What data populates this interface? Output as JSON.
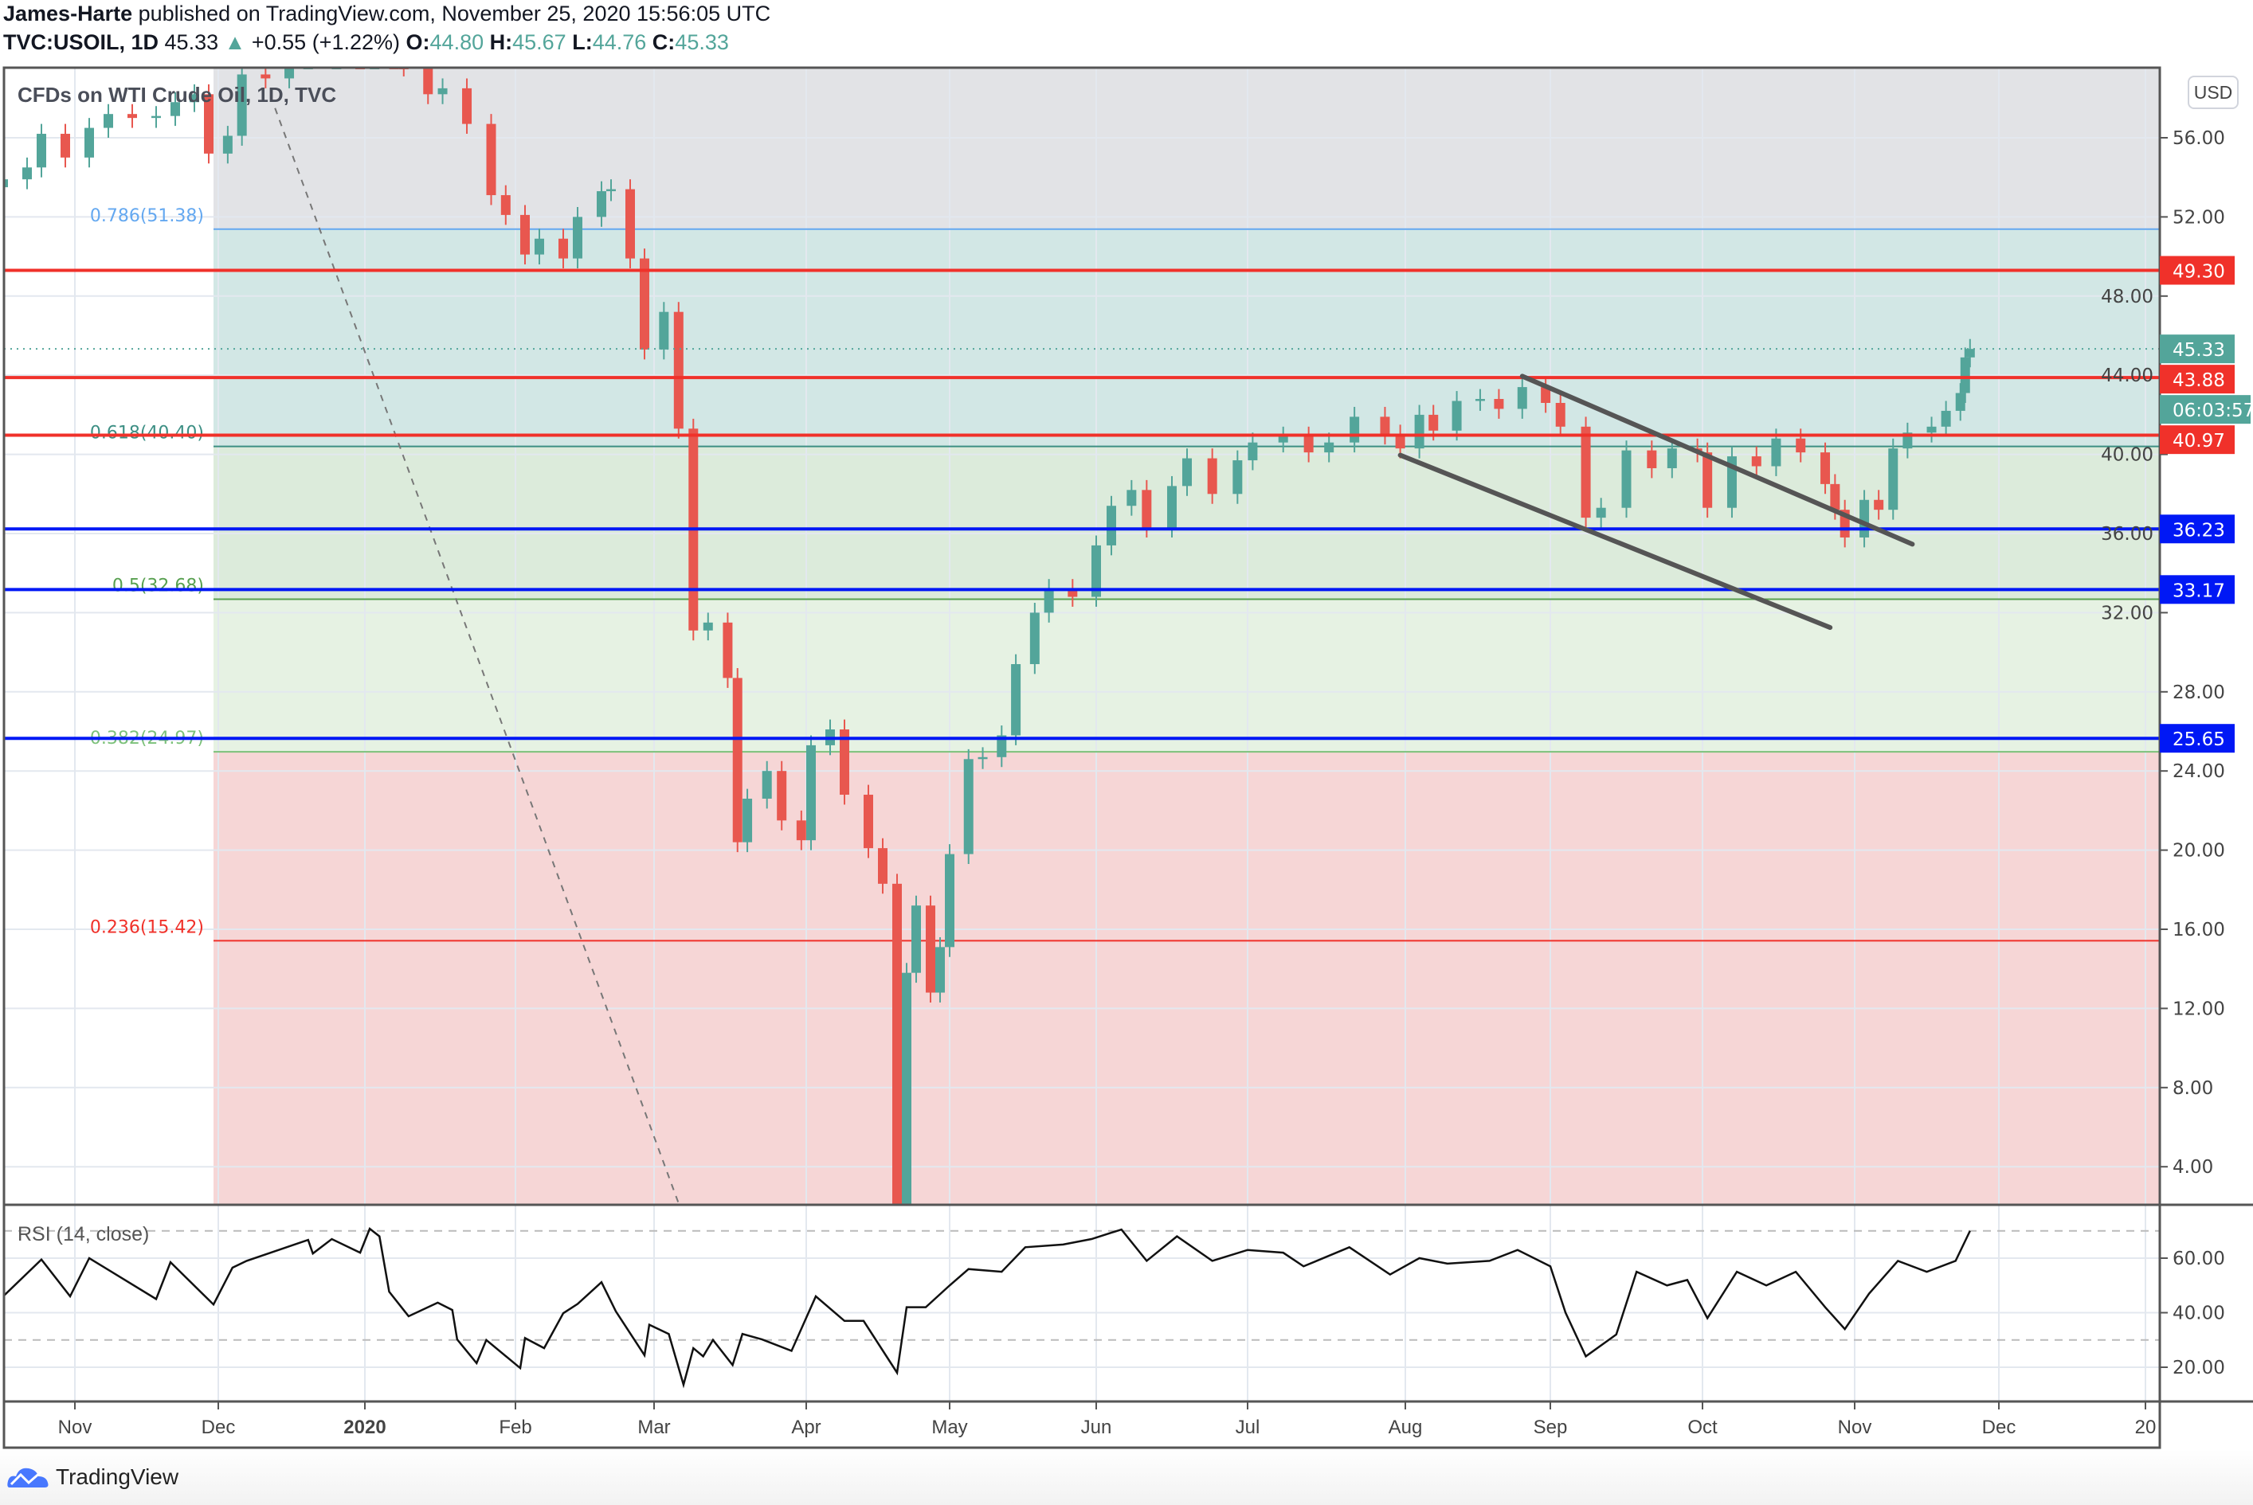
{
  "header": {
    "author": "James-Harte",
    "published_text": "published on TradingView.com, November 25, 2020 15:56:05 UTC",
    "symbol": "TVC:USOIL, 1D",
    "last": "45.33",
    "change": "+0.55 (+1.22%)",
    "o_label": "O:",
    "o": "44.80",
    "h_label": "H:",
    "h": "45.67",
    "l_label": "L:",
    "l": "44.76",
    "c_label": "C:",
    "c": "45.33",
    "direction_icon": "triangle-up-icon"
  },
  "watermark": "CFDs on WTI Crude Oil, 1D, TVC",
  "currency_button": "USD",
  "footer": {
    "brand": "TradingView",
    "logo_icon": "tradingview-cloud-icon"
  },
  "colors": {
    "up": "#53a59a",
    "down": "#e8574f",
    "red_level": "#f0312a",
    "blue_level": "#0018f5",
    "teal_tag": "#53a59a"
  },
  "chart_data": [
    {
      "type": "candlestick",
      "title": "CFDs on WTI Crude Oil, 1D, TVC",
      "ylabel": "USD",
      "y_ticks": [
        56,
        52,
        48,
        44,
        40,
        36,
        32,
        28,
        24,
        20,
        16,
        12,
        8,
        4
      ],
      "y_tick_labels": [
        "56.00",
        "52.00",
        "48.00",
        "44.00",
        "40.00",
        "36.00",
        "32.00",
        "28.00",
        "24.00",
        "20.00",
        "16.00",
        "12.00",
        "8.00",
        "4.00"
      ],
      "x_tick_labels": [
        {
          "date": "2019-11-01",
          "label": "Nov"
        },
        {
          "date": "2019-12-01",
          "label": "Dec"
        },
        {
          "date": "2020-01-01",
          "label": "2020"
        },
        {
          "date": "2020-02-01",
          "label": "Feb"
        },
        {
          "date": "2020-03-01",
          "label": "Mar"
        },
        {
          "date": "2020-04-01",
          "label": "Apr"
        },
        {
          "date": "2020-05-01",
          "label": "May"
        },
        {
          "date": "2020-06-01",
          "label": "Jun"
        },
        {
          "date": "2020-07-01",
          "label": "Jul"
        },
        {
          "date": "2020-08-01",
          "label": "Aug"
        },
        {
          "date": "2020-09-01",
          "label": "Sep"
        },
        {
          "date": "2020-10-01",
          "label": "Oct"
        },
        {
          "date": "2020-11-01",
          "label": "Nov"
        },
        {
          "date": "2020-12-01",
          "label": "Dec"
        },
        {
          "date": "2020-12-31",
          "label": "20"
        }
      ],
      "grid": true,
      "closes": [
        [
          "2019-10-17",
          53.9
        ],
        [
          "2019-10-22",
          54.5
        ],
        [
          "2019-10-25",
          56.2
        ],
        [
          "2019-10-30",
          55.0
        ],
        [
          "2019-11-04",
          56.5
        ],
        [
          "2019-11-08",
          57.2
        ],
        [
          "2019-11-13",
          57.0
        ],
        [
          "2019-11-18",
          57.1
        ],
        [
          "2019-11-22",
          57.8
        ],
        [
          "2019-11-26",
          58.2
        ],
        [
          "2019-11-29",
          55.2
        ],
        [
          "2019-12-03",
          56.1
        ],
        [
          "2019-12-06",
          59.2
        ],
        [
          "2019-12-11",
          59.0
        ],
        [
          "2019-12-16",
          60.2
        ],
        [
          "2019-12-20",
          60.4
        ],
        [
          "2019-12-26",
          61.7
        ],
        [
          "2019-12-31",
          61.1
        ],
        [
          "2020-01-03",
          63.0
        ],
        [
          "2020-01-07",
          62.7
        ],
        [
          "2020-01-09",
          59.6
        ],
        [
          "2020-01-14",
          58.2
        ],
        [
          "2020-01-17",
          58.5
        ],
        [
          "2020-01-22",
          56.7
        ],
        [
          "2020-01-27",
          53.1
        ],
        [
          "2020-01-30",
          52.1
        ],
        [
          "2020-02-03",
          50.1
        ],
        [
          "2020-02-06",
          50.9
        ],
        [
          "2020-02-11",
          49.9
        ],
        [
          "2020-02-14",
          52.0
        ],
        [
          "2020-02-19",
          53.3
        ],
        [
          "2020-02-21",
          53.4
        ],
        [
          "2020-02-25",
          49.9
        ],
        [
          "2020-02-28",
          45.3
        ],
        [
          "2020-03-03",
          47.2
        ],
        [
          "2020-03-06",
          41.3
        ],
        [
          "2020-03-09",
          31.1
        ],
        [
          "2020-03-12",
          31.5
        ],
        [
          "2020-03-16",
          28.7
        ],
        [
          "2020-03-18",
          20.4
        ],
        [
          "2020-03-20",
          22.6
        ],
        [
          "2020-03-24",
          24.0
        ],
        [
          "2020-03-27",
          21.5
        ],
        [
          "2020-03-31",
          20.5
        ],
        [
          "2020-04-02",
          25.3
        ],
        [
          "2020-04-06",
          26.1
        ],
        [
          "2020-04-09",
          22.8
        ],
        [
          "2020-04-14",
          20.1
        ],
        [
          "2020-04-17",
          18.3
        ],
        [
          "2020-04-20",
          -37.0
        ],
        [
          "2020-04-22",
          13.8
        ],
        [
          "2020-04-24",
          17.2
        ],
        [
          "2020-04-27",
          12.8
        ],
        [
          "2020-04-29",
          15.1
        ],
        [
          "2020-05-01",
          19.8
        ],
        [
          "2020-05-05",
          24.6
        ],
        [
          "2020-05-08",
          24.7
        ],
        [
          "2020-05-12",
          25.8
        ],
        [
          "2020-05-15",
          29.4
        ],
        [
          "2020-05-19",
          32.0
        ],
        [
          "2020-05-22",
          33.2
        ],
        [
          "2020-05-27",
          32.8
        ],
        [
          "2020-06-01",
          35.4
        ],
        [
          "2020-06-04",
          37.4
        ],
        [
          "2020-06-08",
          38.2
        ],
        [
          "2020-06-11",
          36.3
        ],
        [
          "2020-06-16",
          38.4
        ],
        [
          "2020-06-19",
          39.8
        ],
        [
          "2020-06-24",
          38.0
        ],
        [
          "2020-06-29",
          39.7
        ],
        [
          "2020-07-02",
          40.6
        ],
        [
          "2020-07-08",
          40.9
        ],
        [
          "2020-07-13",
          40.1
        ],
        [
          "2020-07-17",
          40.6
        ],
        [
          "2020-07-22",
          41.9
        ],
        [
          "2020-07-28",
          41.0
        ],
        [
          "2020-07-31",
          40.3
        ],
        [
          "2020-08-04",
          42.0
        ],
        [
          "2020-08-07",
          41.2
        ],
        [
          "2020-08-12",
          42.7
        ],
        [
          "2020-08-17",
          42.8
        ],
        [
          "2020-08-21",
          42.3
        ],
        [
          "2020-08-26",
          43.4
        ],
        [
          "2020-08-31",
          42.6
        ],
        [
          "2020-09-03",
          41.4
        ],
        [
          "2020-09-08",
          36.8
        ],
        [
          "2020-09-11",
          37.3
        ],
        [
          "2020-09-16",
          40.2
        ],
        [
          "2020-09-21",
          39.3
        ],
        [
          "2020-09-25",
          40.3
        ],
        [
          "2020-09-30",
          40.1
        ],
        [
          "2020-10-02",
          37.3
        ],
        [
          "2020-10-07",
          39.9
        ],
        [
          "2020-10-12",
          39.4
        ],
        [
          "2020-10-16",
          40.8
        ],
        [
          "2020-10-21",
          40.1
        ],
        [
          "2020-10-26",
          38.5
        ],
        [
          "2020-10-28",
          37.2
        ],
        [
          "2020-10-30",
          35.8
        ],
        [
          "2020-11-03",
          37.7
        ],
        [
          "2020-11-06",
          37.2
        ],
        [
          "2020-11-09",
          40.3
        ],
        [
          "2020-11-12",
          41.1
        ],
        [
          "2020-11-17",
          41.4
        ],
        [
          "2020-11-20",
          42.2
        ],
        [
          "2020-11-23",
          43.1
        ],
        [
          "2020-11-24",
          44.9
        ],
        [
          "2020-11-25",
          45.33
        ]
      ],
      "fibonacci": {
        "start_date": "2019-11-30",
        "levels": [
          {
            "ratio": "0.786",
            "price": 51.38,
            "label": "0.786(51.38)",
            "color": "#64a8f0",
            "fill": "#dde9f9"
          },
          {
            "ratio": "0.618",
            "price": 40.4,
            "label": "0.618(40.40)",
            "color": "#3d8f84",
            "fill": "#d2e7e5"
          },
          {
            "ratio": "0.5",
            "price": 32.68,
            "label": "0.5(32.68)",
            "color": "#58a050",
            "fill": "#dcebdb"
          },
          {
            "ratio": "0.382",
            "price": 24.97,
            "label": "0.382(24.97)",
            "color": "#7cc17a",
            "fill": "#e6f2e3"
          },
          {
            "ratio": "0.236",
            "price": 15.42,
            "label": "0.236(15.42)",
            "color": "#f0312a",
            "fill": "#f6d6d6"
          }
        ],
        "top_fill": "#e2e3e6"
      },
      "horizontal_levels": [
        {
          "price": 49.3,
          "label": "49.30",
          "color": "#f0312a"
        },
        {
          "price": 43.88,
          "label": "43.88",
          "color": "#f0312a"
        },
        {
          "price": 40.97,
          "label": "40.97",
          "color": "#f0312a"
        },
        {
          "price": 36.23,
          "label": "36.23",
          "color": "#0018f5"
        },
        {
          "price": 33.17,
          "label": "33.17",
          "color": "#0018f5"
        },
        {
          "price": 25.65,
          "label": "25.65",
          "color": "#0018f5"
        }
      ],
      "last_price": {
        "price": 45.33,
        "label": "45.33",
        "countdown": "06:03:57"
      },
      "trendlines": [
        {
          "from": [
            "2020-07-31",
            39.96
          ],
          "to": [
            "2020-10-27",
            31.25
          ]
        },
        {
          "from": [
            "2020-08-26",
            43.95
          ],
          "to": [
            "2020-11-13",
            35.46
          ]
        }
      ],
      "dashed_line": {
        "from": [
          "2019-12-13",
          57.5
        ],
        "to": [
          "2020-03-06",
          2.15
        ]
      }
    },
    {
      "type": "line",
      "title": "RSI (14, close)",
      "y_ticks": [
        60,
        40,
        20
      ],
      "y_tick_labels": [
        "60.00",
        "40.00",
        "20.00"
      ],
      "bands": [
        70,
        30
      ],
      "values": [
        [
          "2019-10-17",
          46
        ],
        [
          "2019-10-25",
          59.5
        ],
        [
          "2019-10-31",
          46
        ],
        [
          "2019-11-04",
          60
        ],
        [
          "2019-11-18",
          45
        ],
        [
          "2019-11-21",
          58.5
        ],
        [
          "2019-11-30",
          43
        ],
        [
          "2019-12-04",
          56.5
        ],
        [
          "2019-12-07",
          59
        ],
        [
          "2019-12-20",
          66.7
        ],
        [
          "2019-12-21",
          61.7
        ],
        [
          "2019-12-25",
          67
        ],
        [
          "2019-12-31",
          62
        ],
        [
          "2020-01-02",
          70.8
        ],
        [
          "2020-01-04",
          68
        ],
        [
          "2020-01-06",
          47.7
        ],
        [
          "2020-01-10",
          38.7
        ],
        [
          "2020-01-16",
          43.7
        ],
        [
          "2020-01-19",
          41
        ],
        [
          "2020-01-20",
          30.2
        ],
        [
          "2020-01-24",
          21.5
        ],
        [
          "2020-01-26",
          30
        ],
        [
          "2020-02-02",
          19.7
        ],
        [
          "2020-02-03",
          30.7
        ],
        [
          "2020-02-07",
          27
        ],
        [
          "2020-02-11",
          39.8
        ],
        [
          "2020-02-14",
          43.2
        ],
        [
          "2020-02-19",
          51.2
        ],
        [
          "2020-02-22",
          40.5
        ],
        [
          "2020-02-28",
          24.4
        ],
        [
          "2020-02-29",
          35.6
        ],
        [
          "2020-03-04",
          32.2
        ],
        [
          "2020-03-07",
          13.6
        ],
        [
          "2020-03-09",
          27
        ],
        [
          "2020-03-11",
          24
        ],
        [
          "2020-03-13",
          30
        ],
        [
          "2020-03-17",
          20.8
        ],
        [
          "2020-03-19",
          32.2
        ],
        [
          "2020-03-23",
          30.2
        ],
        [
          "2020-03-29",
          26
        ],
        [
          "2020-04-03",
          46
        ],
        [
          "2020-04-09",
          37
        ],
        [
          "2020-04-13",
          37
        ],
        [
          "2020-04-20",
          18
        ],
        [
          "2020-04-22",
          42
        ],
        [
          "2020-04-26",
          42
        ],
        [
          "2020-05-01",
          50
        ],
        [
          "2020-05-05",
          56
        ],
        [
          "2020-05-12",
          55
        ],
        [
          "2020-05-17",
          64
        ],
        [
          "2020-05-25",
          65
        ],
        [
          "2020-05-31",
          67
        ],
        [
          "2020-06-06",
          70.5
        ],
        [
          "2020-06-11",
          59
        ],
        [
          "2020-06-17",
          68
        ],
        [
          "2020-06-24",
          59
        ],
        [
          "2020-07-01",
          63
        ],
        [
          "2020-07-08",
          62
        ],
        [
          "2020-07-12",
          57
        ],
        [
          "2020-07-21",
          64
        ],
        [
          "2020-07-29",
          54
        ],
        [
          "2020-08-04",
          60
        ],
        [
          "2020-08-10",
          58
        ],
        [
          "2020-08-19",
          59
        ],
        [
          "2020-08-25",
          63
        ],
        [
          "2020-09-01",
          57
        ],
        [
          "2020-09-04",
          40
        ],
        [
          "2020-09-08",
          24
        ],
        [
          "2020-09-14",
          32
        ],
        [
          "2020-09-18",
          55
        ],
        [
          "2020-09-24",
          50
        ],
        [
          "2020-09-28",
          52
        ],
        [
          "2020-10-02",
          38
        ],
        [
          "2020-10-08",
          55
        ],
        [
          "2020-10-14",
          50
        ],
        [
          "2020-10-20",
          55
        ],
        [
          "2020-10-26",
          42
        ],
        [
          "2020-10-30",
          34
        ],
        [
          "2020-11-04",
          47
        ],
        [
          "2020-11-10",
          59
        ],
        [
          "2020-11-16",
          55
        ],
        [
          "2020-11-22",
          59
        ],
        [
          "2020-11-25",
          70
        ]
      ]
    }
  ]
}
